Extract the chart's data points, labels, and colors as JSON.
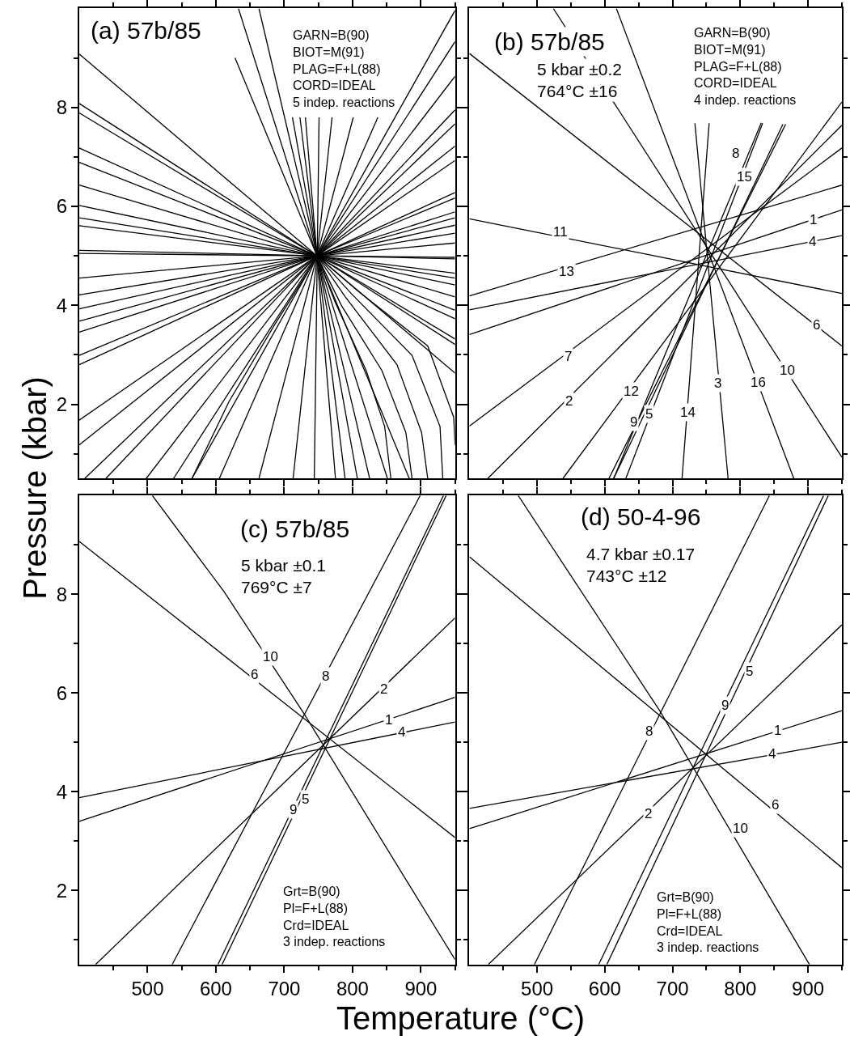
{
  "chart_data": [
    {
      "type": "line",
      "title": "(a) 57b/85",
      "ylabel": "Pressure (kbar)",
      "xlim": [
        400,
        950
      ],
      "ylim": [
        0.5,
        10
      ],
      "xticks": [
        {
          "value": 450,
          "label": null
        },
        500,
        {
          "value": 550,
          "label": null
        },
        600,
        {
          "value": 650,
          "label": null
        },
        700,
        {
          "value": 750,
          "label": null
        },
        800,
        {
          "value": 850,
          "label": null
        },
        900,
        {
          "value": 950,
          "label": null
        }
      ],
      "yticks": [
        {
          "value": 1,
          "label": null
        },
        2,
        {
          "value": 3,
          "label": null
        },
        4,
        {
          "value": 5,
          "label": null
        },
        6,
        {
          "value": 7,
          "label": null
        },
        8,
        {
          "value": 9,
          "label": null
        }
      ],
      "tick_labels": "y",
      "annotations": [
        "GARN=B(90)\nBIOT=M(91)\nPLAG=F+L(88)\nCORD=IDEAL\n5 indep. reactions"
      ],
      "series": [
        {
          "color": "#000000",
          "x": [
            400,
            950
          ],
          "values": [
            9.08,
            2.63
          ]
        },
        {
          "color": "#000000",
          "x": [
            400,
            950
          ],
          "values": [
            8.08,
            3.21
          ]
        },
        {
          "color": "#000000",
          "x": [
            400,
            950
          ],
          "values": [
            7.89,
            3.32
          ]
        },
        {
          "color": "#000000",
          "x": [
            400,
            950
          ],
          "values": [
            7.18,
            3.73
          ]
        },
        {
          "color": "#000000",
          "x": [
            400,
            950
          ],
          "values": [
            6.89,
            3.9
          ]
        },
        {
          "color": "#000000",
          "x": [
            400,
            950
          ],
          "values": [
            6.43,
            4.17
          ]
        },
        {
          "color": "#000000",
          "x": [
            400,
            950
          ],
          "values": [
            6.02,
            4.41
          ]
        },
        {
          "color": "#000000",
          "x": [
            400,
            950
          ],
          "values": [
            5.77,
            4.55
          ]
        },
        {
          "color": "#000000",
          "x": [
            400,
            950
          ],
          "values": [
            5.61,
            4.65
          ]
        },
        {
          "color": "#000000",
          "x": [
            400,
            950
          ],
          "values": [
            5.11,
            4.94
          ]
        },
        {
          "color": "#000000",
          "x": [
            400,
            950
          ],
          "values": [
            5.05,
            4.97
          ]
        },
        {
          "color": "#000000",
          "x": [
            400,
            950
          ],
          "values": [
            4.55,
            5.26
          ]
        },
        {
          "color": "#000000",
          "x": [
            400,
            950
          ],
          "values": [
            4.21,
            5.46
          ]
        },
        {
          "color": "#000000",
          "x": [
            400,
            950
          ],
          "values": [
            3.93,
            5.62
          ]
        },
        {
          "color": "#000000",
          "x": [
            400,
            950
          ],
          "values": [
            3.68,
            5.77
          ]
        },
        {
          "color": "#000000",
          "x": [
            400,
            950
          ],
          "values": [
            3.46,
            5.89
          ]
        },
        {
          "color": "#000000",
          "x": [
            400,
            950
          ],
          "values": [
            2.99,
            6.17
          ]
        },
        {
          "color": "#000000",
          "x": [
            400,
            950
          ],
          "values": [
            2.8,
            6.28
          ]
        },
        {
          "color": "#000000",
          "x": [
            400,
            950
          ],
          "values": [
            1.68,
            6.93
          ]
        },
        {
          "color": "#000000",
          "x": [
            400,
            950
          ],
          "values": [
            1.18,
            7.22
          ]
        },
        {
          "color": "#000000",
          "x": [
            408,
            950
          ],
          "values": [
            0.5,
            7.67
          ]
        },
        {
          "color": "#000000",
          "x": [
            439,
            950
          ],
          "values": [
            0.5,
            7.95
          ]
        },
        {
          "color": "#000000",
          "x": [
            498,
            950
          ],
          "values": [
            0.5,
            8.63
          ]
        },
        {
          "color": "#000000",
          "x": [
            538,
            950
          ],
          "values": [
            0.5,
            9.33
          ]
        },
        {
          "color": "#000000",
          "x": [
            565,
            950
          ],
          "values": [
            0.5,
            9.96
          ]
        },
        {
          "color": "#000000",
          "x": [
            605,
            837
          ],
          "values": [
            0.5,
            7.8
          ]
        },
        {
          "color": "#000000",
          "x": [
            663,
            801
          ],
          "values": [
            0.5,
            7.8
          ]
        },
        {
          "color": "#000000",
          "x": [
            713,
            770
          ],
          "values": [
            0.5,
            7.8
          ]
        },
        {
          "color": "#000000",
          "x": [
            744,
            751
          ],
          "values": [
            0.5,
            7.8
          ]
        },
        {
          "color": "#000000",
          "x": [
            775,
            731
          ],
          "values": [
            0.5,
            7.8
          ]
        },
        {
          "color": "#000000",
          "x": [
            789,
            723
          ],
          "values": [
            0.5,
            7.8
          ]
        },
        {
          "color": "#000000",
          "x": [
            807,
            712
          ],
          "values": [
            0.5,
            7.8
          ]
        },
        {
          "color": "#000000",
          "x": [
            825,
            663
          ],
          "values": [
            0.5,
            10
          ]
        },
        {
          "color": "#000000",
          "x": [
            851,
            633
          ],
          "values": [
            0.5,
            10
          ]
        },
        {
          "color": "#000000",
          "x": [
            883,
            628
          ],
          "values": [
            0.5,
            9.0
          ]
        },
        {
          "color": "#000000",
          "x": [
            748,
            775,
            820,
            847,
            856
          ],
          "values": [
            5.0,
            4.05,
            2.68,
            1.55,
            0.5
          ]
        },
        {
          "color": "#000000",
          "x": [
            748,
            784,
            843,
            878,
            887
          ],
          "values": [
            5.0,
            3.99,
            2.68,
            1.43,
            0.5
          ]
        },
        {
          "color": "#000000",
          "x": [
            748,
            789,
            865,
            901,
            910
          ],
          "values": [
            5.0,
            4.18,
            2.8,
            1.43,
            0.5
          ]
        },
        {
          "color": "#000000",
          "x": [
            748,
            798,
            887,
            928,
            932
          ],
          "values": [
            5.0,
            4.24,
            2.99,
            1.55,
            0.5
          ]
        },
        {
          "color": "#000000",
          "x": [
            748,
            807,
            910,
            948,
            950
          ],
          "values": [
            5.0,
            4.3,
            3.18,
            1.74,
            1.18
          ]
        },
        {
          "color": "#000000",
          "x": [
            565,
            619,
            686,
            735
          ],
          "values": [
            0.5,
            2.05,
            3.61,
            4.68
          ]
        }
      ]
    },
    {
      "type": "line",
      "title": "(b) 57b/85",
      "xlim": [
        400,
        950
      ],
      "ylim": [
        0.5,
        10
      ],
      "xticks": [
        {
          "value": 450,
          "label": null
        },
        500,
        {
          "value": 550,
          "label": null
        },
        600,
        {
          "value": 650,
          "label": null
        },
        700,
        {
          "value": 750,
          "label": null
        },
        800,
        {
          "value": 850,
          "label": null
        },
        900,
        {
          "value": 950,
          "label": null
        }
      ],
      "yticks": [
        {
          "value": 1,
          "label": null
        },
        2,
        {
          "value": 3,
          "label": null
        },
        4,
        {
          "value": 5,
          "label": null
        },
        6,
        {
          "value": 7,
          "label": null
        },
        8,
        {
          "value": 9,
          "label": null
        }
      ],
      "tick_labels": false,
      "annotations": [
        "5 kbar ±0.2\n764°C ±16",
        "GARN=B(90)\nBIOT=M(91)\nPLAG=F+L(88)\nCORD=IDEAL\n4 indep. reactions",
        {
          "text": "1",
          "x": 908,
          "y": 5.73
        },
        {
          "text": "2",
          "x": 547,
          "y": 2.07
        },
        {
          "text": "3",
          "x": 767,
          "y": 2.43
        },
        {
          "text": "4",
          "x": 907,
          "y": 5.29
        },
        {
          "text": "5",
          "x": 665,
          "y": 1.8
        },
        {
          "text": "6",
          "x": 912,
          "y": 3.61
        },
        {
          "text": "7",
          "x": 546,
          "y": 2.96
        },
        {
          "text": "8",
          "x": 793,
          "y": 7.07
        },
        {
          "text": "9",
          "x": 643,
          "y": 1.64
        },
        {
          "text": "10",
          "x": 869,
          "y": 2.69
        },
        {
          "text": "11",
          "x": 535,
          "y": 5.48
        },
        {
          "text": "12",
          "x": 639,
          "y": 2.27
        },
        {
          "text": "13",
          "x": 544,
          "y": 4.69
        },
        {
          "text": "14",
          "x": 723,
          "y": 1.83
        },
        {
          "text": "15",
          "x": 806,
          "y": 6.6
        },
        {
          "text": "16",
          "x": 827,
          "y": 2.44
        }
      ],
      "series": [
        {
          "color": "#000000",
          "x": [
            400,
            950
          ],
          "values": [
            3.41,
            5.93
          ]
        },
        {
          "color": "#000000",
          "x": [
            427,
            950
          ],
          "values": [
            0.5,
            7.64
          ]
        },
        {
          "color": "#000000",
          "x": [
            782,
            733
          ],
          "values": [
            0.5,
            7.68
          ]
        },
        {
          "color": "#000000",
          "x": [
            400,
            950
          ],
          "values": [
            3.91,
            5.41
          ]
        },
        {
          "color": "#000000",
          "x": [
            613,
            863
          ],
          "values": [
            0.5,
            7.66
          ]
        },
        {
          "color": "#000000",
          "x": [
            400,
            950
          ],
          "values": [
            9.09,
            3.18
          ]
        },
        {
          "color": "#000000",
          "x": [
            400,
            950
          ],
          "values": [
            1.56,
            7.18
          ]
        },
        {
          "color": "#000000",
          "x": [
            613,
            831
          ],
          "values": [
            0.5,
            7.69
          ]
        },
        {
          "color": "#000000",
          "x": [
            606,
            867
          ],
          "values": [
            0.5,
            7.66
          ]
        },
        {
          "color": "#000000",
          "x": [
            524,
            950
          ],
          "values": [
            10,
            0.93
          ]
        },
        {
          "color": "#000000",
          "x": [
            400,
            950
          ],
          "values": [
            5.75,
            4.24
          ]
        },
        {
          "color": "#000000",
          "x": [
            538,
            950
          ],
          "values": [
            0.5,
            8.11
          ]
        },
        {
          "color": "#000000",
          "x": [
            400,
            950
          ],
          "values": [
            4.19,
            6.43
          ]
        },
        {
          "color": "#000000",
          "x": [
            714,
            754
          ],
          "values": [
            0.5,
            7.68
          ]
        },
        {
          "color": "#000000",
          "x": [
            631,
            833
          ],
          "values": [
            0.5,
            7.68
          ]
        },
        {
          "color": "#000000",
          "x": [
            879,
            617
          ],
          "values": [
            0.5,
            10
          ]
        }
      ]
    },
    {
      "type": "line",
      "title": "(c) 57b/85",
      "xlabel": "Temperature (°C)",
      "xlim": [
        400,
        950
      ],
      "ylim": [
        0.5,
        10
      ],
      "xticks": [
        {
          "value": 450,
          "label": null
        },
        500,
        {
          "value": 550,
          "label": null
        },
        600,
        {
          "value": 650,
          "label": null
        },
        700,
        {
          "value": 750,
          "label": null
        },
        800,
        {
          "value": 850,
          "label": null
        },
        900,
        {
          "value": 950,
          "label": null
        }
      ],
      "yticks": [
        {
          "value": 1,
          "label": null
        },
        2,
        {
          "value": 3,
          "label": null
        },
        4,
        {
          "value": 5,
          "label": null
        },
        6,
        {
          "value": 7,
          "label": null
        },
        8,
        {
          "value": 9,
          "label": null
        }
      ],
      "annotations": [
        "5 kbar ±0.1\n769°C ±7",
        "Grt=B(90)\nPl=F+L(88)\nCrd=IDEAL\n3 indep. reactions",
        {
          "text": "1",
          "x": 853,
          "y": 5.46
        },
        {
          "text": "2",
          "x": 846,
          "y": 6.07
        },
        {
          "text": "4",
          "x": 872,
          "y": 5.21
        },
        {
          "text": "5",
          "x": 731,
          "y": 3.85
        },
        {
          "text": "6",
          "x": 656,
          "y": 6.37
        },
        {
          "text": "8",
          "x": 761,
          "y": 6.34
        },
        {
          "text": "9",
          "x": 713,
          "y": 3.63
        },
        {
          "text": "10",
          "x": 680,
          "y": 6.74
        }
      ],
      "series": [
        {
          "color": "#000000",
          "x": [
            400,
            950
          ],
          "values": [
            3.4,
            5.91
          ]
        },
        {
          "color": "#000000",
          "x": [
            424,
            950
          ],
          "values": [
            0.5,
            7.52
          ]
        },
        {
          "color": "#000000",
          "x": [
            400,
            950
          ],
          "values": [
            3.88,
            5.41
          ]
        },
        {
          "color": "#000000",
          "x": [
            609,
            937
          ],
          "values": [
            0.5,
            10
          ]
        },
        {
          "color": "#000000",
          "x": [
            400,
            950
          ],
          "values": [
            9.07,
            3.07
          ]
        },
        {
          "color": "#000000",
          "x": [
            536,
            899
          ],
          "values": [
            0.5,
            10
          ]
        },
        {
          "color": "#000000",
          "x": [
            603,
            933
          ],
          "values": [
            0.5,
            10
          ]
        },
        {
          "color": "#000000",
          "x": [
            507,
            612,
            729,
            950
          ],
          "values": [
            10,
            8.05,
            5.58,
            0.6
          ]
        }
      ]
    },
    {
      "type": "line",
      "title": "(d) 50-4-96",
      "xlim": [
        400,
        950
      ],
      "ylim": [
        0.5,
        10
      ],
      "xticks": [
        {
          "value": 450,
          "label": null
        },
        500,
        {
          "value": 550,
          "label": null
        },
        600,
        {
          "value": 650,
          "label": null
        },
        700,
        {
          "value": 750,
          "label": null
        },
        800,
        {
          "value": 850,
          "label": null
        },
        900,
        {
          "value": 950,
          "label": null
        }
      ],
      "yticks": [
        {
          "value": 1,
          "label": null
        },
        2,
        {
          "value": 3,
          "label": null
        },
        4,
        {
          "value": 5,
          "label": null
        },
        6,
        {
          "value": 7,
          "label": null
        },
        8,
        {
          "value": 9,
          "label": null
        }
      ],
      "tick_labels": "x",
      "annotations": [
        "4.7 kbar ±0.17\n743°C ±12",
        "Grt=B(90)\nPl=F+L(88)\nCrd=IDEAL\n3 indep. reactions",
        {
          "text": "1",
          "x": 855,
          "y": 5.24
        },
        {
          "text": "2",
          "x": 664,
          "y": 3.56
        },
        {
          "text": "4",
          "x": 847,
          "y": 4.77
        },
        {
          "text": "5",
          "x": 813,
          "y": 6.44
        },
        {
          "text": "6",
          "x": 852,
          "y": 3.74
        },
        {
          "text": "8",
          "x": 665,
          "y": 5.23
        },
        {
          "text": "9",
          "x": 777,
          "y": 5.75
        },
        {
          "text": "10",
          "x": 800,
          "y": 3.26
        }
      ],
      "series": [
        {
          "color": "#000000",
          "x": [
            400,
            950
          ],
          "values": [
            3.25,
            5.64
          ]
        },
        {
          "color": "#000000",
          "x": [
            428,
            950
          ],
          "values": [
            0.5,
            7.38
          ]
        },
        {
          "color": "#000000",
          "x": [
            400,
            950
          ],
          "values": [
            3.66,
            5.0
          ]
        },
        {
          "color": "#000000",
          "x": [
            603,
            930
          ],
          "values": [
            0.5,
            10
          ]
        },
        {
          "color": "#000000",
          "x": [
            400,
            950
          ],
          "values": [
            8.76,
            2.46
          ]
        },
        {
          "color": "#000000",
          "x": [
            496,
            843
          ],
          "values": [
            0.5,
            10
          ]
        },
        {
          "color": "#000000",
          "x": [
            591,
            923
          ],
          "values": [
            0.5,
            10
          ]
        },
        {
          "color": "#000000",
          "x": [
            472,
            681,
            902
          ],
          "values": [
            10,
            5.64,
            0.5
          ]
        }
      ]
    }
  ]
}
